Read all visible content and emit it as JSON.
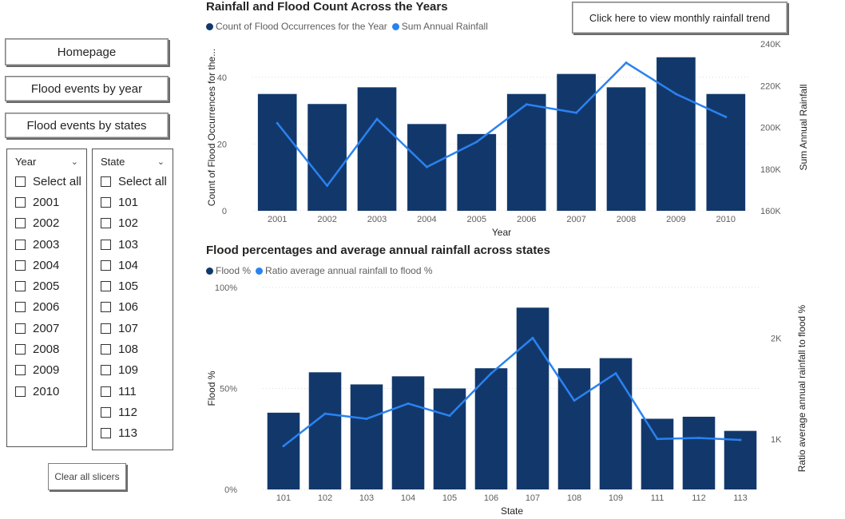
{
  "nav": {
    "homepage": "Homepage",
    "flood_by_year": "Flood events by year",
    "flood_by_states": "Flood events by states",
    "monthly_trend": "Click here to view monthly rainfall trend",
    "clear_slicers": "Clear all slicers"
  },
  "year_slicer": {
    "title": "Year",
    "select_all": "Select all",
    "items": [
      "2001",
      "2002",
      "2003",
      "2004",
      "2005",
      "2006",
      "2007",
      "2008",
      "2009",
      "2010"
    ]
  },
  "state_slicer": {
    "title": "State",
    "select_all": "Select all",
    "items": [
      "101",
      "102",
      "103",
      "104",
      "105",
      "106",
      "107",
      "108",
      "109",
      "111",
      "112",
      "113"
    ]
  },
  "colors": {
    "bar": "#12386b",
    "line": "#2a82f0",
    "bar_legend": "#12386b",
    "line_legend": "#2a82f0"
  },
  "chart_data": [
    {
      "type": "bar+line",
      "title": "Rainfall and Flood Count Across the Years",
      "xlabel": "Year",
      "ylabel": "Count of Flood Occurrences for the...",
      "y2label": "Sum Annual Rainfall",
      "legend": [
        "Count of Flood Occurrences for the Year",
        "Sum Annual Rainfall"
      ],
      "legend_position": "top-left",
      "categories": [
        "2001",
        "2002",
        "2003",
        "2004",
        "2005",
        "2006",
        "2007",
        "2008",
        "2009",
        "2010"
      ],
      "series": [
        {
          "name": "Count of Flood Occurrences for the Year",
          "kind": "bar",
          "axis": "left",
          "values": [
            35,
            32,
            37,
            26,
            23,
            35,
            41,
            37,
            46,
            35
          ]
        },
        {
          "name": "Sum Annual Rainfall",
          "kind": "line",
          "axis": "right",
          "values": [
            202000,
            172000,
            204000,
            181000,
            193000,
            211000,
            207000,
            231000,
            216000,
            205000
          ]
        }
      ],
      "ylim": [
        0,
        50
      ],
      "yticks": [
        0,
        20,
        40
      ],
      "ytick_labels": [
        "0",
        "20",
        "40"
      ],
      "y2lim": [
        160000,
        240000
      ],
      "y2ticks": [
        160000,
        180000,
        200000,
        220000,
        240000
      ],
      "y2tick_labels": [
        "160K",
        "180K",
        "200K",
        "220K",
        "240K"
      ],
      "grid": true
    },
    {
      "type": "bar+line",
      "title": "Flood percentages and average annual rainfall across states",
      "xlabel": "State",
      "ylabel": "Flood %",
      "y2label": "Ratio average annual rainfall to flood %",
      "legend": [
        "Flood %",
        "Ratio average annual rainfall to flood %"
      ],
      "legend_position": "top-left",
      "categories": [
        "101",
        "102",
        "103",
        "104",
        "105",
        "106",
        "107",
        "108",
        "109",
        "111",
        "112",
        "113"
      ],
      "series": [
        {
          "name": "Flood %",
          "kind": "bar",
          "axis": "left",
          "values": [
            38,
            58,
            52,
            56,
            50,
            60,
            90,
            60,
            65,
            35,
            36,
            29
          ]
        },
        {
          "name": "Ratio average annual rainfall to flood %",
          "kind": "line",
          "axis": "right",
          "values": [
            930,
            1250,
            1200,
            1350,
            1230,
            1650,
            2000,
            1380,
            1650,
            1000,
            1010,
            990
          ]
        }
      ],
      "ylim": [
        0,
        100
      ],
      "yticks": [
        0,
        50,
        100
      ],
      "ytick_labels": [
        "0%",
        "50%",
        "100%"
      ],
      "y2lim": [
        500,
        2500
      ],
      "y2ticks": [
        1000,
        2000
      ],
      "y2tick_labels": [
        "1K",
        "2K"
      ],
      "grid": true
    }
  ]
}
